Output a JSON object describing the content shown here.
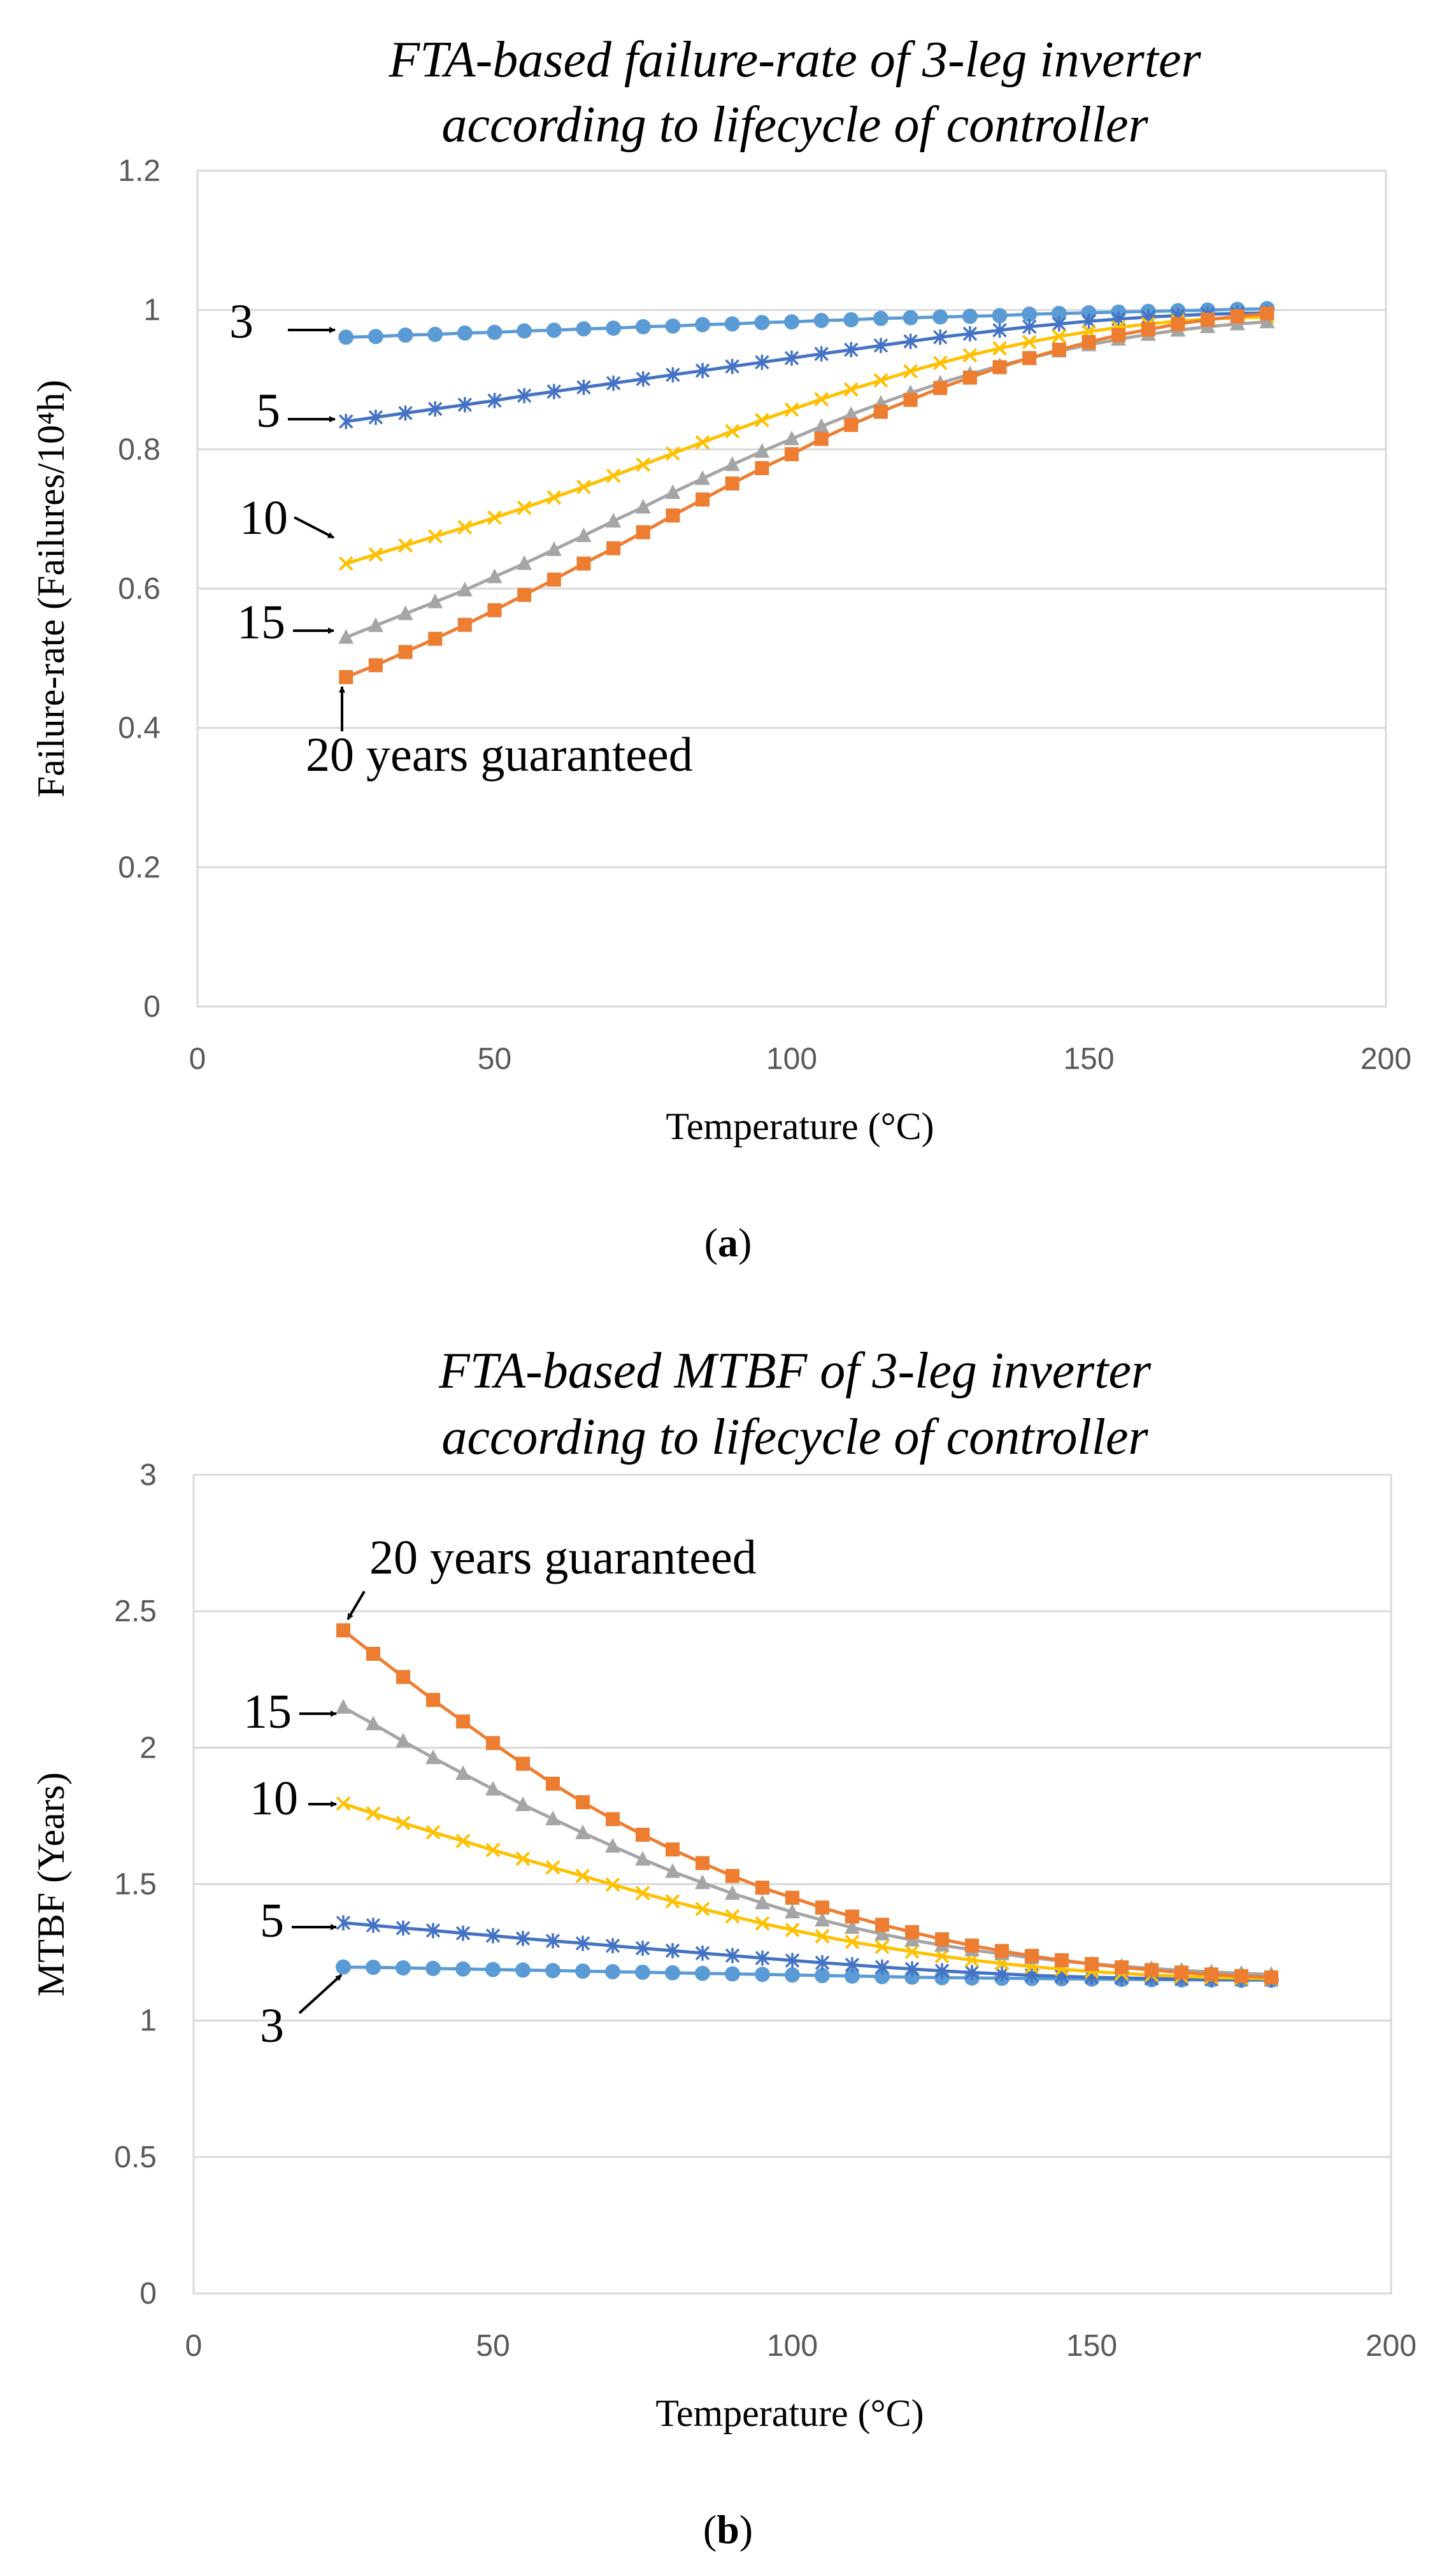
{
  "chart_data": [
    {
      "type": "line",
      "title_lines": [
        "FTA-based failure-rate of 3-leg inverter",
        "according to lifecycle of controller"
      ],
      "ylabel": "Failure-rate (Failures/10⁴h)",
      "xlabel": "Temperature (°C)",
      "caption_letter": "a",
      "xlim": [
        0,
        200
      ],
      "ylim": [
        0,
        1.2
      ],
      "xticks": [
        0,
        50,
        100,
        150,
        200
      ],
      "yticks": [
        0,
        0.2,
        0.4,
        0.6,
        0.8,
        1,
        1.2
      ],
      "ytick_labels": [
        "0",
        "0.2",
        "0.4",
        "0.6",
        "0.8",
        "1",
        "1.2"
      ],
      "grid": "horizontal",
      "x": [
        25,
        30,
        35,
        40,
        45,
        50,
        55,
        60,
        65,
        70,
        75,
        80,
        85,
        90,
        95,
        100,
        105,
        110,
        115,
        120,
        125,
        130,
        135,
        140,
        145,
        150,
        155,
        160,
        165,
        170,
        175,
        180
      ],
      "series": [
        {
          "key": "s3",
          "marker": "circle",
          "color": "#5b9bd5",
          "values": [
            0.961,
            0.962,
            0.964,
            0.965,
            0.967,
            0.968,
            0.97,
            0.971,
            0.973,
            0.974,
            0.976,
            0.977,
            0.979,
            0.98,
            0.982,
            0.983,
            0.985,
            0.986,
            0.988,
            0.989,
            0.99,
            0.991,
            0.992,
            0.994,
            0.995,
            0.996,
            0.997,
            0.998,
            0.999,
            1.0,
            1.001,
            1.002
          ]
        },
        {
          "key": "s5",
          "marker": "star",
          "color": "#4472c4",
          "values": [
            0.84,
            0.846,
            0.852,
            0.858,
            0.864,
            0.87,
            0.877,
            0.883,
            0.889,
            0.895,
            0.901,
            0.907,
            0.913,
            0.919,
            0.925,
            0.931,
            0.937,
            0.943,
            0.949,
            0.955,
            0.961,
            0.966,
            0.971,
            0.976,
            0.98,
            0.984,
            0.987,
            0.99,
            0.992,
            0.994,
            0.995,
            0.996
          ]
        },
        {
          "key": "s10",
          "marker": "x",
          "color": "#ffc000",
          "values": [
            0.636,
            0.649,
            0.662,
            0.675,
            0.688,
            0.702,
            0.716,
            0.731,
            0.746,
            0.762,
            0.778,
            0.794,
            0.81,
            0.826,
            0.842,
            0.857,
            0.872,
            0.886,
            0.899,
            0.912,
            0.924,
            0.935,
            0.945,
            0.954,
            0.962,
            0.969,
            0.975,
            0.98,
            0.984,
            0.987,
            0.989,
            0.99
          ]
        },
        {
          "key": "s15",
          "marker": "triangle",
          "color": "#a5a5a5",
          "values": [
            0.53,
            0.547,
            0.564,
            0.581,
            0.598,
            0.617,
            0.636,
            0.656,
            0.676,
            0.697,
            0.717,
            0.738,
            0.758,
            0.778,
            0.797,
            0.815,
            0.833,
            0.85,
            0.866,
            0.881,
            0.895,
            0.908,
            0.92,
            0.931,
            0.941,
            0.95,
            0.958,
            0.965,
            0.971,
            0.976,
            0.98,
            0.983
          ]
        },
        {
          "key": "s20",
          "marker": "square",
          "color": "#ed7d31",
          "values": [
            0.473,
            0.49,
            0.509,
            0.528,
            0.548,
            0.569,
            0.591,
            0.613,
            0.636,
            0.658,
            0.681,
            0.705,
            0.728,
            0.751,
            0.773,
            0.793,
            0.815,
            0.835,
            0.854,
            0.871,
            0.888,
            0.903,
            0.918,
            0.931,
            0.943,
            0.954,
            0.964,
            0.972,
            0.98,
            0.986,
            0.991,
            0.995
          ]
        }
      ],
      "annotations": [
        {
          "series": "s3",
          "text": "3"
        },
        {
          "series": "s5",
          "text": "5"
        },
        {
          "series": "s10",
          "text": "10"
        },
        {
          "series": "s15",
          "text": "15"
        },
        {
          "series": "s20",
          "text": "20 years guaranteed"
        }
      ]
    },
    {
      "type": "line",
      "title_lines": [
        "FTA-based MTBF of 3-leg inverter",
        "according to lifecycle of controller"
      ],
      "ylabel": "MTBF (Years)",
      "xlabel": "Temperature (°C)",
      "caption_letter": "b",
      "xlim": [
        0,
        200
      ],
      "ylim": [
        0,
        3
      ],
      "xticks": [
        0,
        50,
        100,
        150,
        200
      ],
      "yticks": [
        0,
        0.5,
        1,
        1.5,
        2,
        2.5,
        3
      ],
      "ytick_labels": [
        "0",
        "0.5",
        "1",
        "1.5",
        "2",
        "2.5",
        "3"
      ],
      "grid": "horizontal",
      "x": [
        25,
        30,
        35,
        40,
        45,
        50,
        55,
        60,
        65,
        70,
        75,
        80,
        85,
        90,
        95,
        100,
        105,
        110,
        115,
        120,
        125,
        130,
        135,
        140,
        145,
        150,
        155,
        160,
        165,
        170,
        175,
        180
      ],
      "series": [
        {
          "key": "s3",
          "marker": "circle",
          "color": "#5b9bd5",
          "values": [
            1.196,
            1.195,
            1.193,
            1.191,
            1.189,
            1.187,
            1.185,
            1.183,
            1.181,
            1.179,
            1.177,
            1.175,
            1.173,
            1.171,
            1.169,
            1.167,
            1.165,
            1.163,
            1.161,
            1.159,
            1.157,
            1.156,
            1.155,
            1.154,
            1.153,
            1.152,
            1.151,
            1.15,
            1.149,
            1.149,
            1.148,
            1.148
          ]
        },
        {
          "key": "s5",
          "marker": "star",
          "color": "#4472c4",
          "values": [
            1.358,
            1.349,
            1.339,
            1.33,
            1.32,
            1.311,
            1.301,
            1.292,
            1.283,
            1.274,
            1.265,
            1.256,
            1.247,
            1.238,
            1.229,
            1.22,
            1.212,
            1.204,
            1.196,
            1.189,
            1.182,
            1.176,
            1.171,
            1.166,
            1.162,
            1.159,
            1.156,
            1.154,
            1.152,
            1.151,
            1.15,
            1.149
          ]
        },
        {
          "key": "s10",
          "marker": "x",
          "color": "#ffc000",
          "values": [
            1.795,
            1.759,
            1.724,
            1.69,
            1.658,
            1.625,
            1.593,
            1.561,
            1.53,
            1.498,
            1.467,
            1.437,
            1.409,
            1.382,
            1.356,
            1.332,
            1.309,
            1.288,
            1.27,
            1.252,
            1.236,
            1.222,
            1.209,
            1.198,
            1.188,
            1.18,
            1.173,
            1.167,
            1.162,
            1.158,
            1.155,
            1.153
          ]
        },
        {
          "key": "s15",
          "marker": "triangle",
          "color": "#a5a5a5",
          "values": [
            2.148,
            2.087,
            2.024,
            1.963,
            1.905,
            1.848,
            1.791,
            1.739,
            1.688,
            1.639,
            1.591,
            1.546,
            1.505,
            1.466,
            1.431,
            1.398,
            1.368,
            1.341,
            1.317,
            1.295,
            1.276,
            1.259,
            1.244,
            1.23,
            1.218,
            1.208,
            1.199,
            1.191,
            1.184,
            1.178,
            1.173,
            1.169
          ]
        },
        {
          "key": "s20",
          "marker": "square",
          "color": "#ed7d31",
          "values": [
            2.43,
            2.344,
            2.259,
            2.175,
            2.096,
            2.017,
            1.941,
            1.868,
            1.8,
            1.738,
            1.681,
            1.627,
            1.577,
            1.53,
            1.487,
            1.45,
            1.414,
            1.381,
            1.351,
            1.324,
            1.298,
            1.275,
            1.255,
            1.237,
            1.221,
            1.207,
            1.195,
            1.185,
            1.176,
            1.169,
            1.163,
            1.158
          ]
        }
      ],
      "annotations": [
        {
          "series": "s3",
          "text": "3"
        },
        {
          "series": "s5",
          "text": "5"
        },
        {
          "series": "s10",
          "text": "10"
        },
        {
          "series": "s15",
          "text": "15"
        },
        {
          "series": "s20",
          "text": "20 years guaranteed"
        }
      ]
    }
  ]
}
